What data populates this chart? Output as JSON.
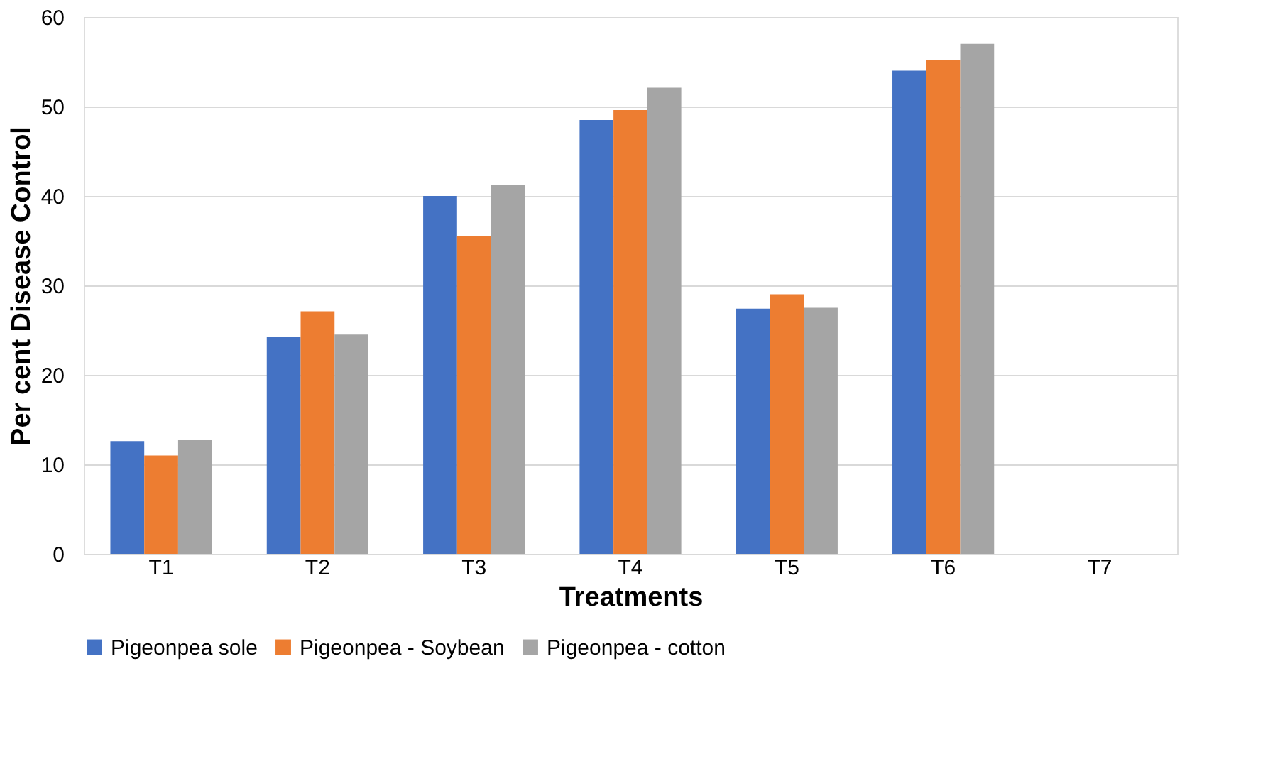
{
  "chart_data": {
    "type": "bar",
    "xlabel": "Treatments",
    "ylabel": "Per cent Disease Control",
    "categories": [
      "T1",
      "T2",
      "T3",
      "T4",
      "T5",
      "T6",
      "T7"
    ],
    "series": [
      {
        "name": "Pigeonpea sole",
        "color": "#4472c4",
        "values": [
          12.6,
          24.2,
          40.0,
          48.5,
          27.4,
          54.0,
          null
        ]
      },
      {
        "name": "Pigeonpea - Soybean",
        "color": "#ed7d31",
        "values": [
          11.0,
          27.1,
          35.5,
          49.6,
          29.0,
          55.2,
          null
        ]
      },
      {
        "name": "Pigeonpea - cotton",
        "color": "#a5a5a5",
        "values": [
          12.7,
          24.5,
          41.2,
          52.1,
          27.5,
          57.0,
          null
        ]
      }
    ],
    "ylim": [
      0,
      60
    ],
    "yticks": [
      0,
      10,
      20,
      30,
      40,
      50,
      60
    ],
    "grid": "y",
    "legend": "bottom"
  }
}
